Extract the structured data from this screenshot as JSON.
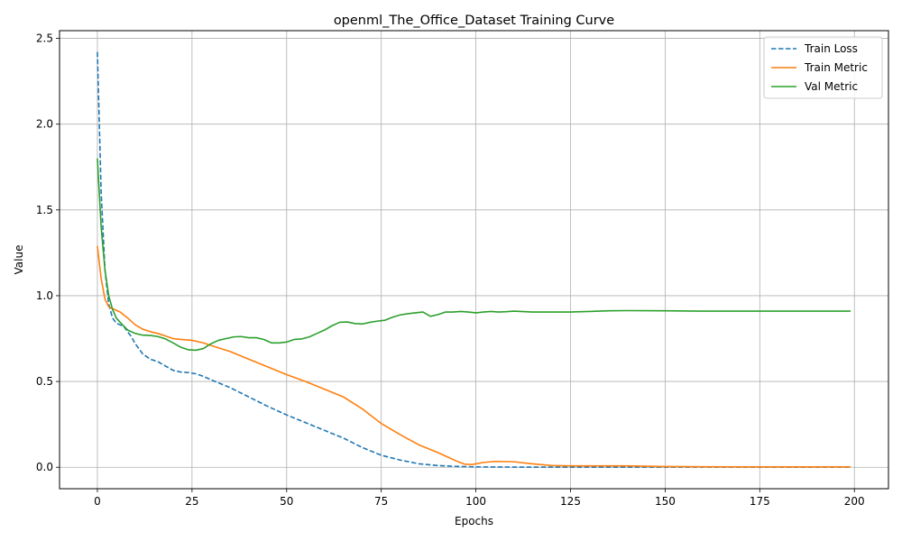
{
  "chart_data": {
    "type": "line",
    "title": "openml_The_Office_Dataset Training Curve",
    "xlabel": "Epochs",
    "ylabel": "Value",
    "xlim": [
      -10,
      209
    ],
    "ylim": [
      -0.125,
      2.545
    ],
    "xticks": [
      0,
      25,
      50,
      75,
      100,
      125,
      150,
      175,
      200
    ],
    "yticks": [
      0.0,
      0.5,
      1.0,
      1.5,
      2.0,
      2.5
    ],
    "xtick_labels": [
      "0",
      "25",
      "50",
      "75",
      "100",
      "125",
      "150",
      "175",
      "200"
    ],
    "ytick_labels": [
      "0.0",
      "0.5",
      "1.0",
      "1.5",
      "2.0",
      "2.5"
    ],
    "grid": true,
    "legend_position": "top-right",
    "series": [
      {
        "name": "Train Loss",
        "color": "#1f77b4",
        "dash": "dashed",
        "x": [
          0,
          1,
          2,
          3,
          4,
          5,
          6,
          7,
          8,
          9,
          10,
          12,
          14,
          16,
          18,
          20,
          22,
          24,
          26,
          28,
          30,
          35,
          40,
          45,
          50,
          55,
          60,
          65,
          70,
          75,
          80,
          85,
          90,
          95,
          100,
          110,
          120,
          130,
          140,
          150,
          160,
          170,
          180,
          190,
          199
        ],
        "y": [
          2.42,
          1.6,
          1.15,
          0.95,
          0.87,
          0.84,
          0.83,
          0.82,
          0.79,
          0.76,
          0.72,
          0.66,
          0.63,
          0.615,
          0.59,
          0.565,
          0.555,
          0.552,
          0.545,
          0.53,
          0.51,
          0.465,
          0.41,
          0.355,
          0.305,
          0.26,
          0.215,
          0.17,
          0.115,
          0.07,
          0.042,
          0.02,
          0.01,
          0.005,
          0.002,
          0.001,
          0.001,
          0.001,
          0.001,
          0.001,
          0.001,
          0.001,
          0.001,
          0.001,
          0.001
        ]
      },
      {
        "name": "Train Metric",
        "color": "#ff7f0e",
        "dash": "solid",
        "x": [
          0,
          1,
          2,
          3,
          4,
          5,
          6,
          8,
          10,
          12,
          14,
          16,
          18,
          20,
          22,
          25,
          28,
          30,
          35,
          40,
          45,
          50,
          55,
          60,
          65,
          70,
          75,
          80,
          85,
          90,
          95,
          97,
          99,
          102,
          105,
          110,
          115,
          120,
          125,
          130,
          140,
          150,
          160,
          170,
          180,
          190,
          199
        ],
        "y": [
          1.29,
          1.1,
          0.98,
          0.935,
          0.925,
          0.915,
          0.905,
          0.87,
          0.83,
          0.805,
          0.79,
          0.78,
          0.765,
          0.75,
          0.745,
          0.74,
          0.725,
          0.71,
          0.675,
          0.63,
          0.585,
          0.54,
          0.5,
          0.455,
          0.41,
          0.34,
          0.255,
          0.19,
          0.13,
          0.085,
          0.035,
          0.018,
          0.016,
          0.028,
          0.034,
          0.032,
          0.02,
          0.01,
          0.008,
          0.008,
          0.008,
          0.004,
          0.003,
          0.002,
          0.002,
          0.002,
          0.002
        ]
      },
      {
        "name": "Val Metric",
        "color": "#2ca02c",
        "dash": "solid",
        "x": [
          0,
          1,
          2,
          3,
          4,
          5,
          6,
          8,
          10,
          12,
          14,
          16,
          18,
          20,
          22,
          24,
          26,
          28,
          30,
          32,
          34,
          36,
          38,
          40,
          42,
          44,
          46,
          48,
          50,
          52,
          54,
          56,
          58,
          60,
          62,
          64,
          66,
          68,
          70,
          72,
          74,
          76,
          78,
          80,
          82,
          84,
          86,
          88,
          90,
          92,
          94,
          96,
          98,
          100,
          102,
          104,
          106,
          108,
          110,
          115,
          120,
          125,
          130,
          135,
          140,
          150,
          160,
          170,
          180,
          190,
          199
        ],
        "y": [
          1.8,
          1.4,
          1.15,
          1.0,
          0.92,
          0.87,
          0.845,
          0.8,
          0.78,
          0.77,
          0.768,
          0.762,
          0.748,
          0.725,
          0.7,
          0.685,
          0.682,
          0.692,
          0.72,
          0.74,
          0.75,
          0.76,
          0.762,
          0.755,
          0.755,
          0.745,
          0.725,
          0.725,
          0.73,
          0.745,
          0.748,
          0.76,
          0.78,
          0.8,
          0.825,
          0.845,
          0.847,
          0.838,
          0.835,
          0.845,
          0.852,
          0.857,
          0.875,
          0.888,
          0.895,
          0.9,
          0.905,
          0.88,
          0.89,
          0.905,
          0.905,
          0.908,
          0.905,
          0.9,
          0.905,
          0.908,
          0.905,
          0.907,
          0.91,
          0.905,
          0.905,
          0.905,
          0.908,
          0.912,
          0.913,
          0.912,
          0.91,
          0.91,
          0.91,
          0.91,
          0.91
        ]
      }
    ]
  }
}
